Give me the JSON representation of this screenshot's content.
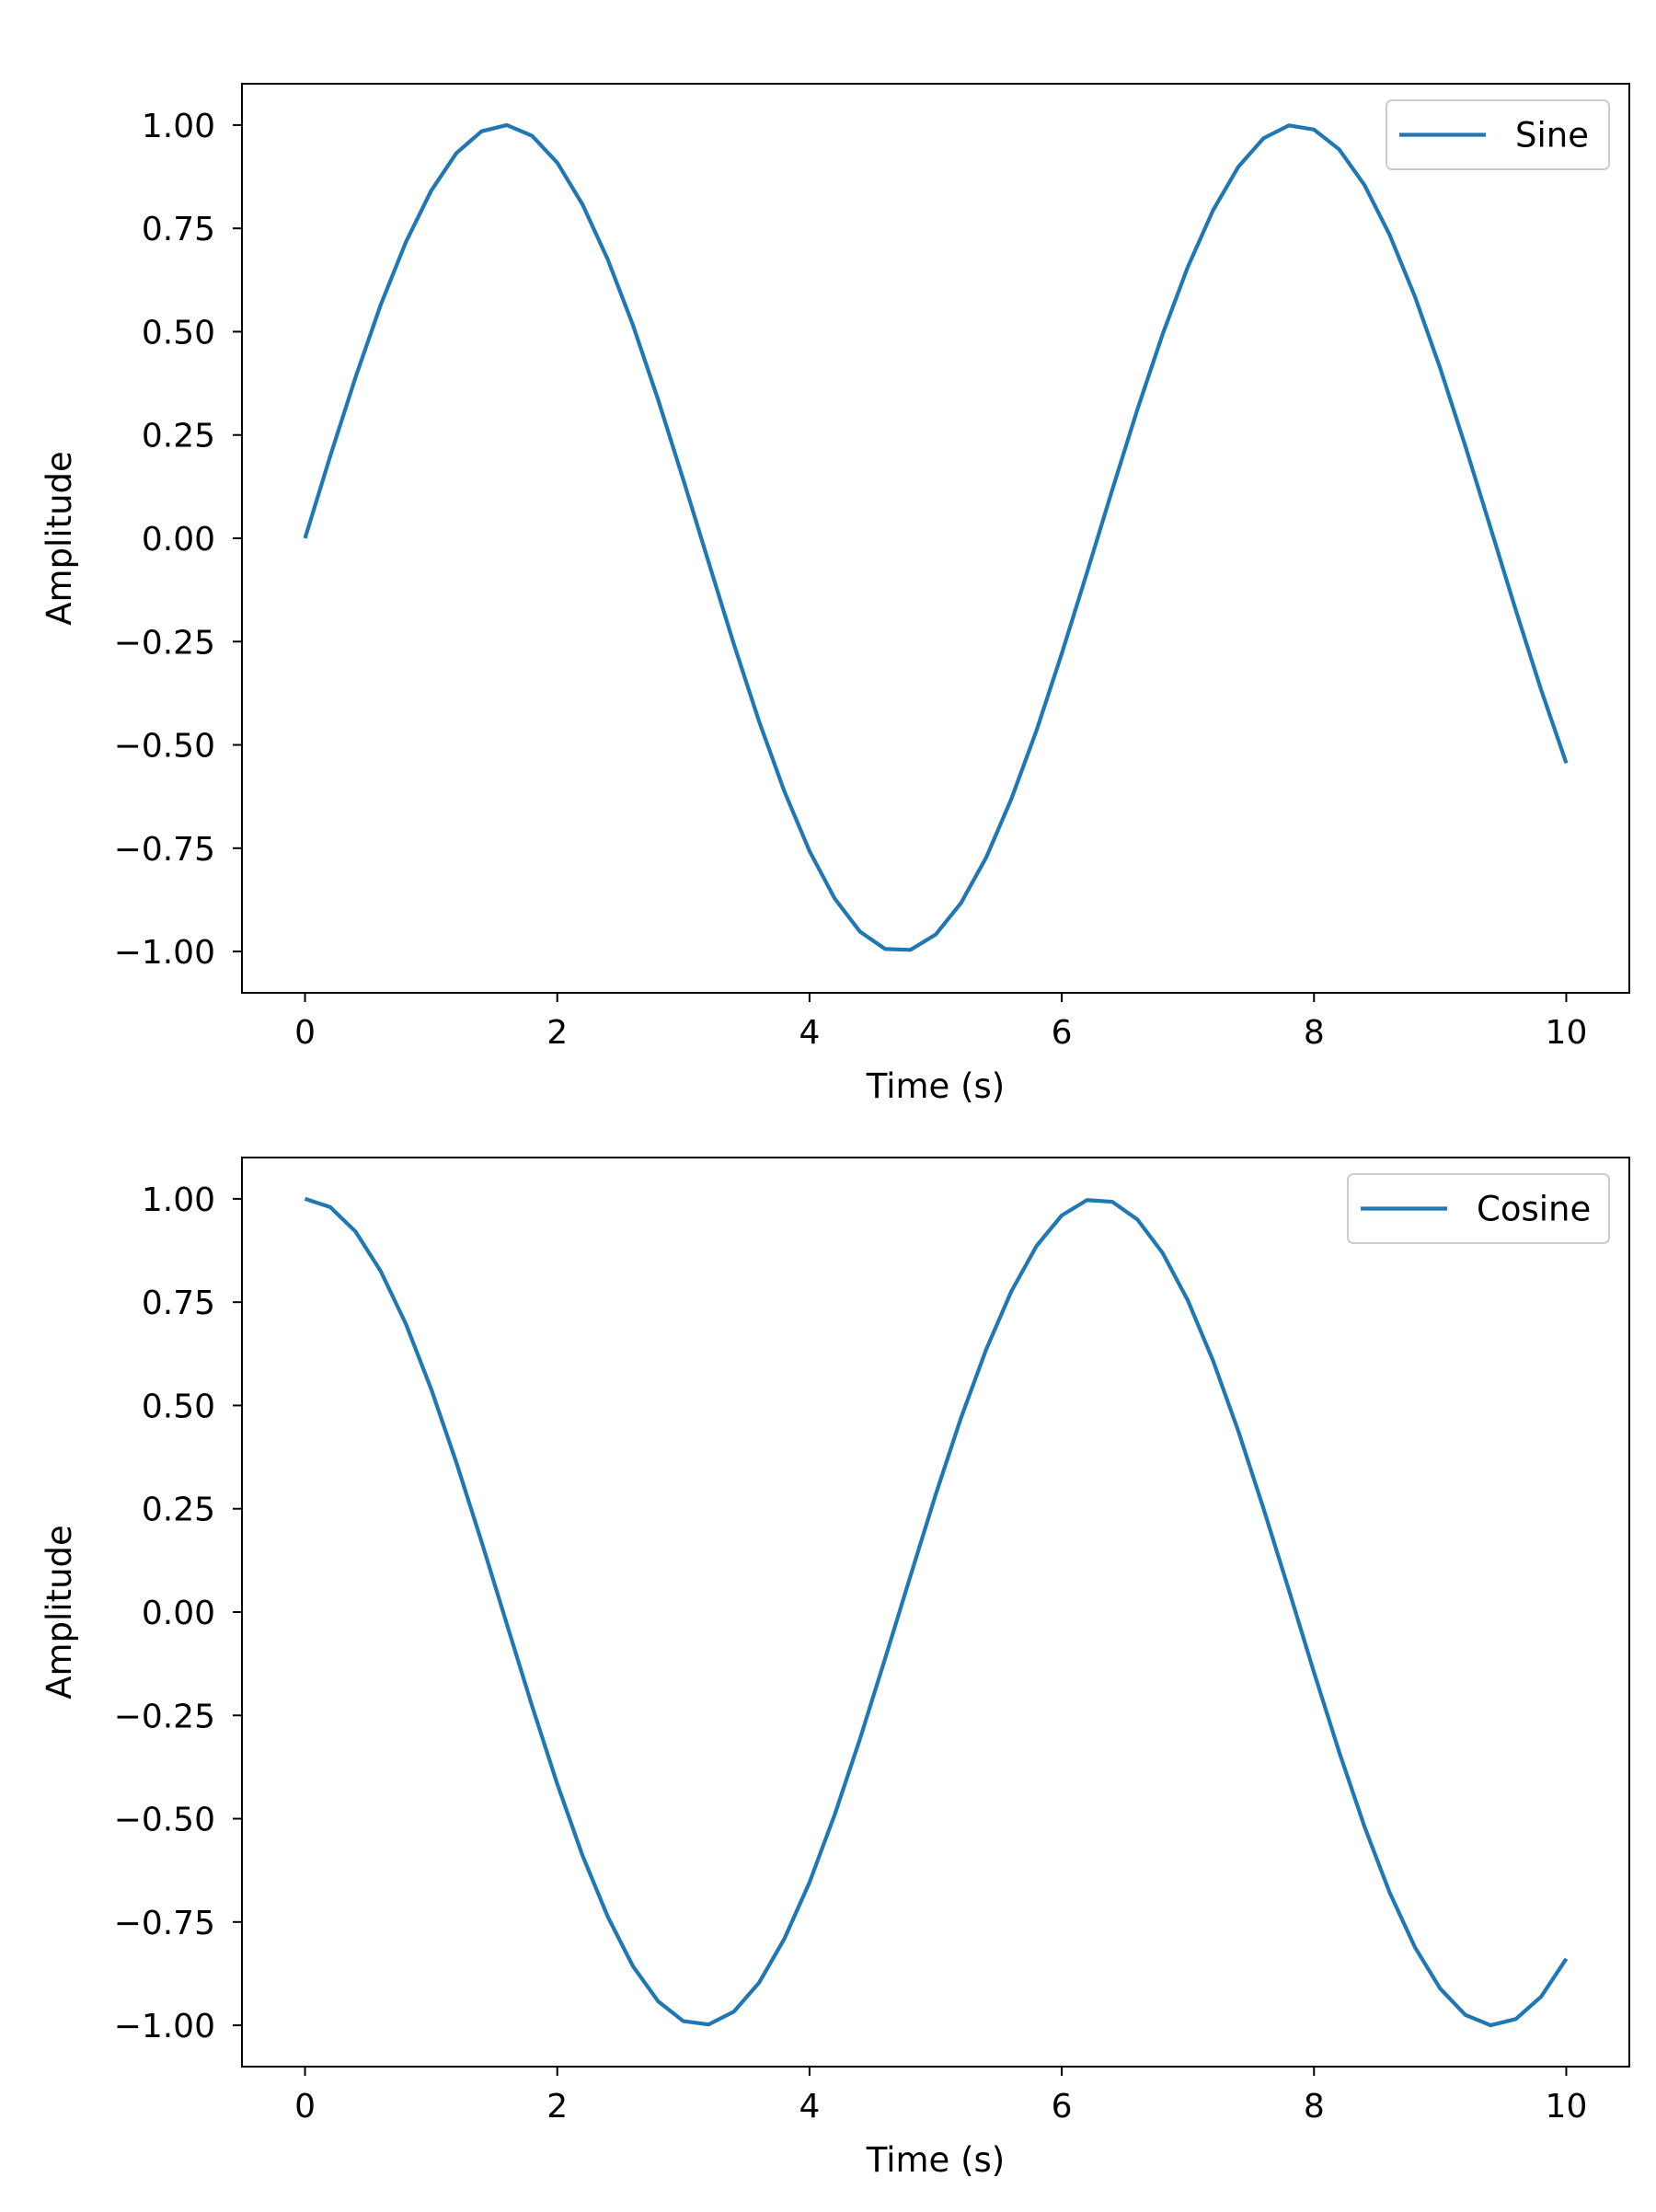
{
  "chart_data": [
    {
      "type": "line",
      "title": "",
      "xlabel": "Time (s)",
      "ylabel": "Amplitude",
      "xlim": [
        -0.5,
        10.5
      ],
      "ylim": [
        -1.1,
        1.1
      ],
      "x_ticks": [
        0,
        2,
        4,
        6,
        8,
        10
      ],
      "x_tick_labels": [
        "0",
        "2",
        "4",
        "6",
        "8",
        "10"
      ],
      "y_ticks": [
        1.0,
        0.75,
        0.5,
        0.25,
        0.0,
        -0.25,
        -0.5,
        -0.75,
        -1.0
      ],
      "y_tick_labels": [
        "1.00",
        "0.75",
        "0.50",
        "0.25",
        "0.00",
        "−0.25",
        "−0.50",
        "−0.75",
        "−1.00"
      ],
      "grid": false,
      "legend": {
        "position": "top-right"
      },
      "series": [
        {
          "name": "Sine",
          "color": "#1f77b4",
          "x": [
            0,
            0.2,
            0.4,
            0.6,
            0.8,
            1.0,
            1.2,
            1.4,
            1.6,
            1.8,
            2.0,
            2.2,
            2.4,
            2.6,
            2.8,
            3.0,
            3.2,
            3.4,
            3.6,
            3.8,
            4.0,
            4.2,
            4.4,
            4.6,
            4.8,
            5.0,
            5.2,
            5.4,
            5.6,
            5.8,
            6.0,
            6.2,
            6.4,
            6.6,
            6.8,
            7.0,
            7.2,
            7.4,
            7.6,
            7.8,
            8.0,
            8.2,
            8.4,
            8.6,
            8.8,
            9.0,
            9.2,
            9.4,
            9.6,
            9.8,
            10.0
          ],
          "y": [
            0.0,
            0.199,
            0.389,
            0.565,
            0.717,
            0.841,
            0.932,
            0.985,
            1.0,
            0.974,
            0.909,
            0.808,
            0.675,
            0.516,
            0.335,
            0.141,
            -0.058,
            -0.256,
            -0.443,
            -0.612,
            -0.757,
            -0.872,
            -0.952,
            -0.994,
            -0.996,
            -0.959,
            -0.883,
            -0.773,
            -0.631,
            -0.465,
            -0.279,
            -0.083,
            0.117,
            0.312,
            0.494,
            0.657,
            0.794,
            0.899,
            0.968,
            0.999,
            0.989,
            0.941,
            0.855,
            0.734,
            0.585,
            0.412,
            0.223,
            0.025,
            -0.174,
            -0.366,
            -0.544
          ]
        }
      ]
    },
    {
      "type": "line",
      "title": "",
      "xlabel": "Time (s)",
      "ylabel": "Amplitude",
      "xlim": [
        -0.5,
        10.5
      ],
      "ylim": [
        -1.1,
        1.1
      ],
      "x_ticks": [
        0,
        2,
        4,
        6,
        8,
        10
      ],
      "x_tick_labels": [
        "0",
        "2",
        "4",
        "6",
        "8",
        "10"
      ],
      "y_ticks": [
        1.0,
        0.75,
        0.5,
        0.25,
        0.0,
        -0.25,
        -0.5,
        -0.75,
        -1.0
      ],
      "y_tick_labels": [
        "1.00",
        "0.75",
        "0.50",
        "0.25",
        "0.00",
        "−0.25",
        "−0.50",
        "−0.75",
        "−1.00"
      ],
      "grid": false,
      "legend": {
        "position": "top-right"
      },
      "series": [
        {
          "name": "Cosine",
          "color": "#1f77b4",
          "x": [
            0,
            0.2,
            0.4,
            0.6,
            0.8,
            1.0,
            1.2,
            1.4,
            1.6,
            1.8,
            2.0,
            2.2,
            2.4,
            2.6,
            2.8,
            3.0,
            3.2,
            3.4,
            3.6,
            3.8,
            4.0,
            4.2,
            4.4,
            4.6,
            4.8,
            5.0,
            5.2,
            5.4,
            5.6,
            5.8,
            6.0,
            6.2,
            6.4,
            6.6,
            6.8,
            7.0,
            7.2,
            7.4,
            7.6,
            7.8,
            8.0,
            8.2,
            8.4,
            8.6,
            8.8,
            9.0,
            9.2,
            9.4,
            9.6,
            9.8,
            10.0
          ],
          "y": [
            1.0,
            0.98,
            0.921,
            0.825,
            0.697,
            0.54,
            0.362,
            0.17,
            -0.029,
            -0.227,
            -0.416,
            -0.589,
            -0.737,
            -0.857,
            -0.942,
            -0.99,
            -0.998,
            -0.967,
            -0.897,
            -0.791,
            -0.654,
            -0.49,
            -0.307,
            -0.112,
            0.087,
            0.284,
            0.469,
            0.635,
            0.776,
            0.886,
            0.96,
            0.997,
            0.993,
            0.95,
            0.869,
            0.754,
            0.608,
            0.438,
            0.25,
            0.054,
            -0.146,
            -0.339,
            -0.519,
            -0.679,
            -0.811,
            -0.911,
            -0.975,
            -1.0,
            -0.985,
            -0.931,
            -0.839
          ]
        }
      ]
    }
  ]
}
